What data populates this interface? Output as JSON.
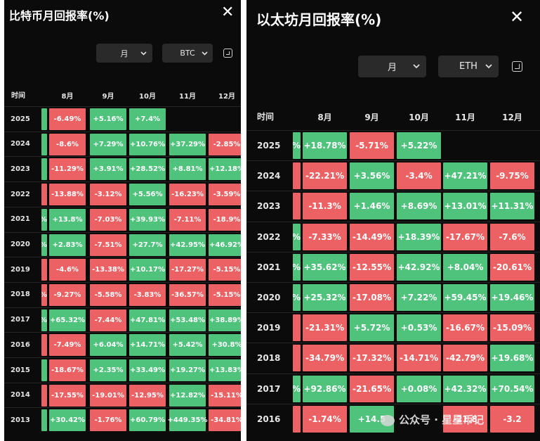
{
  "btc_panel": {
    "title": "比特币月回报率(%)",
    "close_icon": "close-icon",
    "period_select": "月",
    "asset_select": "BTC",
    "expand_icon": "expand-icon",
    "time_header": "时间",
    "months": [
      "8月",
      "9月",
      "10月",
      "11月",
      "12月"
    ],
    "rows": [
      {
        "year": "2025",
        "values": [
          "-6.49%",
          "+5.16%",
          "+7.4%",
          "",
          ""
        ]
      },
      {
        "year": "2024",
        "values": [
          "-8.6%",
          "+7.29%",
          "+10.76%",
          "+37.29%",
          "-2.85%"
        ]
      },
      {
        "year": "2023",
        "values": [
          "-11.29%",
          "+3.91%",
          "+28.52%",
          "+8.81%",
          "+12.18%"
        ]
      },
      {
        "year": "2022",
        "values": [
          "-13.88%",
          "-3.12%",
          "+5.56%",
          "-16.23%",
          "-3.59%"
        ]
      },
      {
        "year": "2021",
        "values": [
          "+13.8%",
          "-7.03%",
          "+39.93%",
          "-7.11%",
          "-18.9%"
        ]
      },
      {
        "year": "2020",
        "values": [
          "+2.83%",
          "-7.51%",
          "+27.7%",
          "+42.95%",
          "+46.92%"
        ]
      },
      {
        "year": "2019",
        "values": [
          "-4.6%",
          "-13.38%",
          "+10.17%",
          "-17.27%",
          "-5.15%"
        ]
      },
      {
        "year": "2018",
        "values": [
          "-9.27%",
          "-5.58%",
          "-3.83%",
          "-36.57%",
          "-5.15%"
        ]
      },
      {
        "year": "2017",
        "values": [
          "+65.32%",
          "-7.44%",
          "+47.81%",
          "+53.48%",
          "+38.89%"
        ]
      },
      {
        "year": "2016",
        "values": [
          "-7.49%",
          "+6.04%",
          "+14.71%",
          "+5.42%",
          "+30.8%"
        ]
      },
      {
        "year": "2015",
        "values": [
          "-18.67%",
          "+2.35%",
          "+33.49%",
          "+19.27%",
          "+13.83%"
        ]
      },
      {
        "year": "2014",
        "values": [
          "-17.55%",
          "-19.01%",
          "-12.95%",
          "+12.82%",
          "-15.11%"
        ]
      },
      {
        "year": "2013",
        "values": [
          "+30.42%",
          "-1.76%",
          "+60.79%",
          "+449.35%",
          "-34.81%"
        ]
      }
    ],
    "left_stub_signs": [
      "+",
      "+",
      "+",
      "-",
      "+",
      "+",
      "-",
      "-",
      "+",
      "-",
      "+",
      "-",
      "+"
    ],
    "left_stub_labels": [
      "",
      "",
      "",
      "",
      "%",
      "%",
      "",
      "%",
      "%",
      "",
      "",
      "",
      ""
    ]
  },
  "eth_panel": {
    "title": "以太坊月回报率(%)",
    "close_icon": "close-icon",
    "period_select": "月",
    "asset_select": "ETH",
    "expand_icon": "expand-icon",
    "time_header": "时间",
    "months": [
      "8月",
      "9月",
      "10月",
      "11月",
      "12月"
    ],
    "rows": [
      {
        "year": "2025",
        "values": [
          "+18.78%",
          "-5.71%",
          "+5.22%",
          "",
          ""
        ]
      },
      {
        "year": "2024",
        "values": [
          "-22.21%",
          "+3.56%",
          "-3.4%",
          "+47.21%",
          "-9.75%"
        ]
      },
      {
        "year": "2023",
        "values": [
          "-11.3%",
          "+1.46%",
          "+8.69%",
          "+13.01%",
          "+11.31%"
        ]
      },
      {
        "year": "2022",
        "values": [
          "-7.33%",
          "-14.49%",
          "+18.39%",
          "-17.67%",
          "-7.6%"
        ]
      },
      {
        "year": "2021",
        "values": [
          "+35.62%",
          "-12.55%",
          "+42.92%",
          "+8.04%",
          "-20.61%"
        ]
      },
      {
        "year": "2020",
        "values": [
          "+25.32%",
          "-17.08%",
          "+7.22%",
          "+59.45%",
          "+19.46%"
        ]
      },
      {
        "year": "2019",
        "values": [
          "-21.31%",
          "+5.72%",
          "+0.53%",
          "-16.67%",
          "-15.09%"
        ]
      },
      {
        "year": "2018",
        "values": [
          "-34.79%",
          "-17.32%",
          "-14.71%",
          "-42.79%",
          "+19.68%"
        ]
      },
      {
        "year": "2017",
        "values": [
          "+92.86%",
          "-21.65%",
          "+0.08%",
          "+42.32%",
          "+70.54%"
        ]
      },
      {
        "year": "2016",
        "values": [
          "-1.74%",
          "+14.5",
          "",
          "-21.8",
          "-3.2"
        ]
      }
    ],
    "left_stub_signs": [
      "+",
      "-",
      "-",
      "+",
      "+",
      "+",
      "-",
      "-",
      "+",
      "-"
    ],
    "left_stub_labels": [
      "%",
      "",
      "",
      "%",
      "%",
      "%",
      "",
      "",
      "%",
      ""
    ]
  },
  "watermark": {
    "text": "公众号 · 星星币记"
  },
  "colors": {
    "positive": "#4fc27c",
    "negative": "#ec6163",
    "background": "#0b0b0b"
  }
}
